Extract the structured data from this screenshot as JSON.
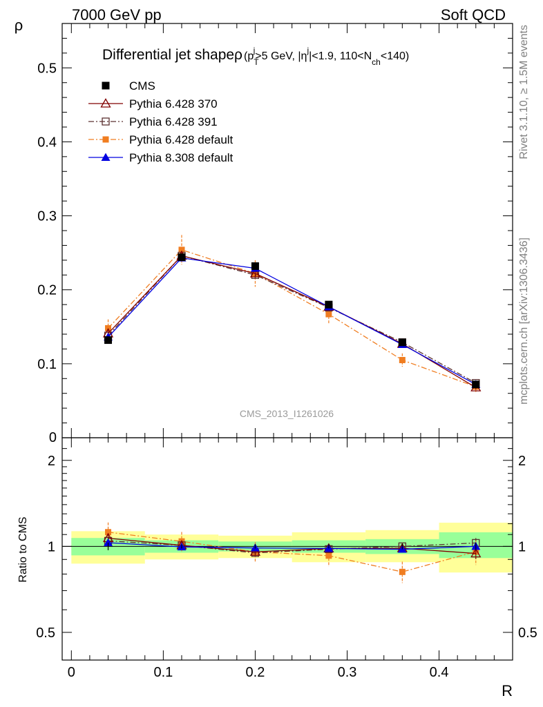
{
  "header": {
    "left": "7000 GeV pp",
    "right": "Soft QCD"
  },
  "side_labels": {
    "rivet": "Rivet 3.1.10, ≥ 1.5M events",
    "mcplots": "mcplots.cern.ch [arXiv:1306.3436]"
  },
  "chart_data": {
    "type": "line",
    "title_main": "Differential jet shapeρ",
    "title_sub": {
      "open": "(p",
      "sub1": "T",
      "sup1": "j",
      "mid1": ">5 GeV, |η",
      "sup2": "j",
      "mid2": "|<1.9, 110<N",
      "sub2": "ch",
      "close": "<140)"
    },
    "watermark": "CMS_2013_I1261026",
    "xlabel": "R",
    "ylabel": "ρ",
    "ratio_ylabel": "Ratio to CMS",
    "xlim": [
      -0.01,
      0.48
    ],
    "ylim": [
      0,
      0.56
    ],
    "ratio_ylim": [
      0.4,
      2.4
    ],
    "x_ticks": [
      "0",
      "0.1",
      "0.2",
      "0.3",
      "0.4"
    ],
    "y_ticks": [
      "0.1",
      "0.2",
      "0.3",
      "0.4",
      "0.5"
    ],
    "y_zero_label": "0",
    "ratio_ticks_left": [
      "0.5",
      "1",
      "2"
    ],
    "ratio_ticks_right": [
      "0.5",
      "1",
      "2"
    ],
    "legend_position": "top-left",
    "x": [
      0.04,
      0.12,
      0.2,
      0.28,
      0.36,
      0.44
    ],
    "bins": [
      [
        0.0,
        0.08
      ],
      [
        0.08,
        0.16
      ],
      [
        0.16,
        0.24
      ],
      [
        0.24,
        0.32
      ],
      [
        0.32,
        0.4
      ],
      [
        0.4,
        0.48
      ]
    ],
    "band_green": [
      [
        0.93,
        1.07
      ],
      [
        0.95,
        1.05
      ],
      [
        0.96,
        1.04
      ],
      [
        0.95,
        1.05
      ],
      [
        0.94,
        1.06
      ],
      [
        0.91,
        1.12
      ]
    ],
    "band_yellow": [
      [
        0.87,
        1.13
      ],
      [
        0.9,
        1.1
      ],
      [
        0.91,
        1.09
      ],
      [
        0.88,
        1.12
      ],
      [
        0.88,
        1.14
      ],
      [
        0.81,
        1.21
      ]
    ],
    "series": [
      {
        "name": "CMS",
        "color": "#000000",
        "marker": "square-filled",
        "line": "none",
        "values": [
          0.132,
          0.244,
          0.232,
          0.18,
          0.129,
          0.072
        ],
        "errors": [
          0.004,
          0.004,
          0.004,
          0.003,
          0.003,
          0.002
        ]
      },
      {
        "name": "Pythia 6.428 370",
        "color": "#800000",
        "marker": "triangle-open",
        "line": "solid",
        "values": [
          0.141,
          0.246,
          0.222,
          0.177,
          0.127,
          0.068
        ],
        "errors": [
          0.004,
          0.006,
          0.005,
          0.004,
          0.003,
          0.003
        ]
      },
      {
        "name": "Pythia 6.428 391",
        "color": "#5a3030",
        "marker": "square-open",
        "line": "dashdot",
        "values": [
          0.138,
          0.246,
          0.22,
          0.176,
          0.129,
          0.074
        ],
        "errors": [
          0.004,
          0.006,
          0.005,
          0.004,
          0.003,
          0.003
        ]
      },
      {
        "name": "Pythia 6.428 default",
        "color": "#f07d20",
        "marker": "square-filled-small",
        "line": "dashdot",
        "values": [
          0.148,
          0.254,
          0.222,
          0.167,
          0.105,
          0.069
        ],
        "errors": [
          0.012,
          0.02,
          0.018,
          0.014,
          0.009,
          0.007
        ]
      },
      {
        "name": "Pythia 8.308 default",
        "color": "#0000e0",
        "marker": "triangle-filled",
        "line": "solid",
        "values": [
          0.136,
          0.243,
          0.229,
          0.177,
          0.126,
          0.072
        ],
        "errors": [
          0.003,
          0.004,
          0.004,
          0.003,
          0.003,
          0.002
        ]
      }
    ]
  }
}
